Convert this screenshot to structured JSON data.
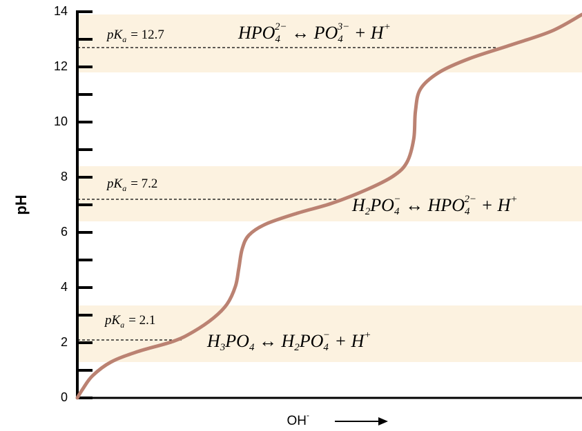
{
  "chart_data": {
    "type": "line",
    "ylabel": "pH",
    "xlabel": "OH",
    "xlabel_sup": "-",
    "x": [
      0,
      0.03,
      0.09,
      0.2,
      0.36,
      0.57,
      0.69,
      0.81,
      0.89,
      0.94,
      0.96,
      0.98,
      1.02,
      1.12,
      1.31,
      1.51,
      1.72,
      1.88,
      1.96,
      2.0,
      2.01,
      2.04,
      2.15,
      2.33,
      2.58,
      2.82,
      3.0
    ],
    "values": [
      0,
      0.3,
      0.8,
      1.3,
      1.68,
      2.05,
      2.4,
      2.9,
      3.4,
      4.05,
      4.7,
      5.4,
      5.9,
      6.3,
      6.7,
      7.05,
      7.55,
      8.05,
      8.55,
      9.4,
      10.4,
      11.2,
      11.8,
      12.3,
      12.8,
      13.3,
      13.9
    ],
    "color": "#bb8272",
    "xlim": [
      0,
      3
    ],
    "ylim": [
      0,
      14
    ],
    "yticks": [
      0,
      2,
      4,
      6,
      8,
      10,
      12,
      14
    ],
    "yminorticks": [
      1,
      3,
      5,
      7,
      9,
      11,
      13
    ],
    "band_color": "#fcf2e0",
    "buffers": [
      {
        "band": [
          11.8,
          13.9
        ],
        "pka": 12.7,
        "pka_symbol": "pK",
        "pka_sub": "a",
        "pka_text": "= 12.7",
        "equation": [
          {
            "t": "HPO",
            "sub": "4",
            "sup": "2−"
          },
          {
            "t": " ↔ "
          },
          {
            "t": "PO",
            "sub": "4",
            "sup": "3−"
          },
          {
            "t": " + H",
            "sup": "+"
          }
        ]
      },
      {
        "band": [
          6.4,
          8.4
        ],
        "pka": 7.2,
        "pka_symbol": "pK",
        "pka_sub": "a",
        "pka_text": "= 7.2",
        "equation": [
          {
            "t": "H",
            "sub": "2"
          },
          {
            "t": "PO",
            "sub": "4",
            "sup": "−"
          },
          {
            "t": " ↔ "
          },
          {
            "t": "HPO",
            "sub": "4",
            "sup": "2−"
          },
          {
            "t": " + H",
            "sup": "+"
          }
        ]
      },
      {
        "band": [
          1.3,
          3.35
        ],
        "pka": 2.1,
        "pka_symbol": "pK",
        "pka_sub": "a",
        "pka_text": "= 2.1",
        "equation": [
          {
            "t": "H",
            "sub": "3"
          },
          {
            "t": "PO",
            "sub": "4"
          },
          {
            "t": " ↔ "
          },
          {
            "t": "H",
            "sub": "2"
          },
          {
            "t": "PO",
            "sub": "4",
            "sup": "−"
          },
          {
            "t": " + H",
            "sup": "+"
          }
        ]
      }
    ]
  }
}
